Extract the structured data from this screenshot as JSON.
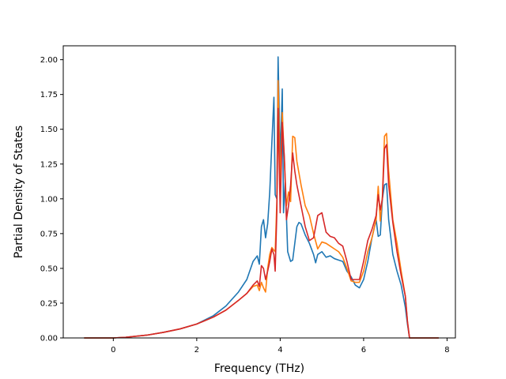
{
  "chart_data": {
    "type": "line",
    "title": "",
    "xlabel": "Frequency (THz)",
    "ylabel": "Partial Density of States",
    "xlim": [
      -1.2,
      8.2
    ],
    "ylim": [
      0.0,
      2.1
    ],
    "xticks": [
      0,
      2,
      4,
      6,
      8
    ],
    "xtick_labels": [
      "0",
      "2",
      "4",
      "6",
      "8"
    ],
    "yticks": [
      0.0,
      0.25,
      0.5,
      0.75,
      1.0,
      1.25,
      1.5,
      1.75,
      2.0
    ],
    "ytick_labels": [
      "0.00",
      "0.25",
      "0.50",
      "0.75",
      "1.00",
      "1.25",
      "1.50",
      "1.75",
      "2.00"
    ],
    "grid": false,
    "legend": false,
    "series": [
      {
        "color": "#1f77b4",
        "x": [
          -0.7,
          0.0,
          0.3,
          0.8,
          1.2,
          1.6,
          2.0,
          2.4,
          2.7,
          3.0,
          3.2,
          3.35,
          3.45,
          3.5,
          3.55,
          3.6,
          3.65,
          3.7,
          3.75,
          3.8,
          3.85,
          3.88,
          3.92,
          3.95,
          4.0,
          4.05,
          4.08,
          4.12,
          4.18,
          4.25,
          4.3,
          4.35,
          4.4,
          4.45,
          4.5,
          4.6,
          4.7,
          4.8,
          4.85,
          4.9,
          5.0,
          5.1,
          5.2,
          5.3,
          5.4,
          5.5,
          5.6,
          5.7,
          5.8,
          5.9,
          6.0,
          6.1,
          6.2,
          6.3,
          6.35,
          6.4,
          6.45,
          6.5,
          6.55,
          6.6,
          6.7,
          6.8,
          6.9,
          7.0,
          7.05,
          7.1,
          7.4,
          7.8
        ],
        "y": [
          0.0,
          0.0,
          0.005,
          0.02,
          0.04,
          0.065,
          0.1,
          0.16,
          0.23,
          0.33,
          0.42,
          0.55,
          0.59,
          0.53,
          0.8,
          0.85,
          0.72,
          0.82,
          1.05,
          1.4,
          1.73,
          1.03,
          1.0,
          2.02,
          1.28,
          1.79,
          0.9,
          1.12,
          0.62,
          0.55,
          0.56,
          0.68,
          0.8,
          0.83,
          0.82,
          0.74,
          0.68,
          0.6,
          0.54,
          0.6,
          0.62,
          0.58,
          0.59,
          0.57,
          0.56,
          0.55,
          0.48,
          0.44,
          0.38,
          0.36,
          0.42,
          0.55,
          0.72,
          0.85,
          0.73,
          0.74,
          1.0,
          1.1,
          1.11,
          0.85,
          0.6,
          0.48,
          0.38,
          0.22,
          0.1,
          0.0,
          0.0,
          0.0
        ]
      },
      {
        "color": "#ff7f0e",
        "x": [
          -0.7,
          0.0,
          0.3,
          0.8,
          1.2,
          1.6,
          2.0,
          2.4,
          2.7,
          3.0,
          3.2,
          3.35,
          3.45,
          3.5,
          3.55,
          3.6,
          3.65,
          3.7,
          3.75,
          3.8,
          3.85,
          3.88,
          3.92,
          3.95,
          4.0,
          4.05,
          4.1,
          4.15,
          4.2,
          4.25,
          4.3,
          4.35,
          4.4,
          4.5,
          4.6,
          4.7,
          4.8,
          4.9,
          5.0,
          5.1,
          5.2,
          5.3,
          5.4,
          5.5,
          5.6,
          5.7,
          5.8,
          5.9,
          6.0,
          6.1,
          6.2,
          6.3,
          6.35,
          6.4,
          6.45,
          6.5,
          6.55,
          6.6,
          6.7,
          6.8,
          6.9,
          7.0,
          7.05,
          7.1,
          7.4,
          7.8
        ],
        "y": [
          0.0,
          0.0,
          0.005,
          0.02,
          0.04,
          0.065,
          0.1,
          0.15,
          0.2,
          0.27,
          0.32,
          0.37,
          0.38,
          0.34,
          0.4,
          0.36,
          0.33,
          0.5,
          0.6,
          0.65,
          0.63,
          0.62,
          0.98,
          1.85,
          1.1,
          1.62,
          1.28,
          0.95,
          1.05,
          0.98,
          1.45,
          1.44,
          1.27,
          1.1,
          0.95,
          0.88,
          0.75,
          0.64,
          0.69,
          0.68,
          0.66,
          0.64,
          0.62,
          0.58,
          0.5,
          0.41,
          0.4,
          0.4,
          0.48,
          0.62,
          0.72,
          0.85,
          1.09,
          0.84,
          1.02,
          1.45,
          1.47,
          1.2,
          0.85,
          0.68,
          0.48,
          0.3,
          0.12,
          0.0,
          0.0,
          0.0
        ]
      },
      {
        "color": "#d62728",
        "x": [
          -0.7,
          0.0,
          0.3,
          0.8,
          1.2,
          1.6,
          2.0,
          2.4,
          2.7,
          3.0,
          3.2,
          3.35,
          3.45,
          3.5,
          3.55,
          3.6,
          3.65,
          3.7,
          3.75,
          3.8,
          3.85,
          3.88,
          3.92,
          3.95,
          4.0,
          4.05,
          4.1,
          4.15,
          4.2,
          4.25,
          4.3,
          4.35,
          4.4,
          4.5,
          4.6,
          4.7,
          4.8,
          4.9,
          5.0,
          5.1,
          5.2,
          5.3,
          5.4,
          5.5,
          5.6,
          5.7,
          5.8,
          5.9,
          6.0,
          6.1,
          6.2,
          6.3,
          6.35,
          6.4,
          6.45,
          6.5,
          6.55,
          6.6,
          6.7,
          6.8,
          6.9,
          7.0,
          7.05,
          7.1,
          7.4,
          7.8
        ],
        "y": [
          0.0,
          0.0,
          0.005,
          0.02,
          0.04,
          0.065,
          0.1,
          0.15,
          0.2,
          0.27,
          0.32,
          0.38,
          0.41,
          0.37,
          0.52,
          0.5,
          0.42,
          0.48,
          0.55,
          0.64,
          0.6,
          0.48,
          0.9,
          1.65,
          0.9,
          1.55,
          1.3,
          0.85,
          0.95,
          1.1,
          1.33,
          1.2,
          1.1,
          0.95,
          0.8,
          0.7,
          0.72,
          0.88,
          0.9,
          0.76,
          0.73,
          0.72,
          0.68,
          0.66,
          0.55,
          0.42,
          0.42,
          0.42,
          0.55,
          0.7,
          0.78,
          0.88,
          1.03,
          0.92,
          1.0,
          1.36,
          1.39,
          1.1,
          0.83,
          0.62,
          0.45,
          0.3,
          0.12,
          0.0,
          0.0,
          0.0
        ]
      }
    ]
  }
}
